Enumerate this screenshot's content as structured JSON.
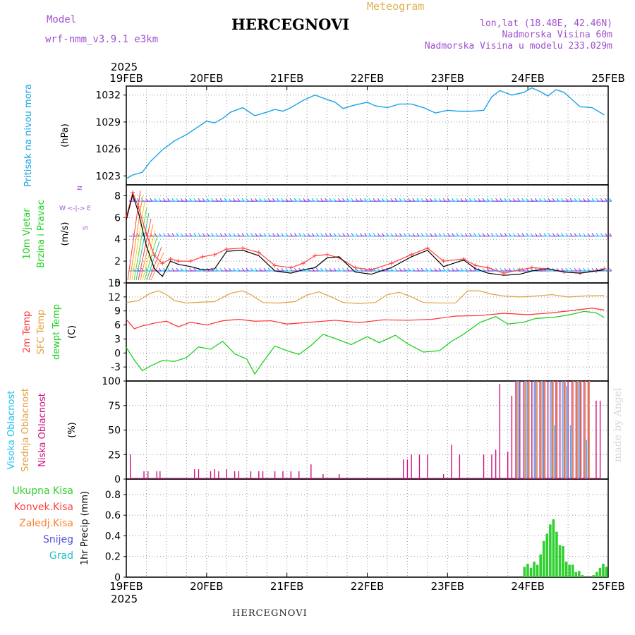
{
  "header": {
    "model_label": "Model",
    "model_value": "wrf-nmm_v3.9.1  e3km",
    "station": "HERCEGNOVI",
    "title": "Meteogram",
    "coords": "lon,lat (18.48E, 42.46N)",
    "elevation": "Nadmorska Visina 60m",
    "model_elevation": "Nadmorska Visina u modelu 233.029m"
  },
  "footer": {
    "station": "HERCEGNOVI",
    "credit": "made by Angel"
  },
  "colors": {
    "pressure": "#1aa3e8",
    "wind_speed": "#000000",
    "gust": "#ff4040",
    "temp2m": "#ff3030",
    "sfc_temp": "#e0a040",
    "dewpoint": "#20d020",
    "high_cloud": "#20c0f0",
    "mid_cloud": "#e0a040",
    "low_cloud": "#d01080",
    "precip": "#30d030"
  },
  "chart_data": [
    {
      "type": "line",
      "panel": "pressure",
      "ylabel_lines": [
        "Pritisak na nivou mora",
        "(hPa)"
      ],
      "ylim": [
        1022,
        1033
      ],
      "yticks": [
        1023,
        1026,
        1029,
        1032
      ],
      "x_days": [
        "19FEB",
        "20FEB",
        "21FEB",
        "22FEB",
        "23FEB",
        "24FEB",
        "25FEB"
      ],
      "year": "2025",
      "series": [
        {
          "name": "MSLP",
          "x": [
            0,
            0.08,
            0.2,
            0.3,
            0.45,
            0.6,
            0.75,
            0.9,
            1.0,
            1.1,
            1.2,
            1.3,
            1.45,
            1.6,
            1.75,
            1.85,
            1.95,
            2.05,
            2.2,
            2.35,
            2.5,
            2.6,
            2.7,
            2.85,
            3.0,
            3.1,
            3.25,
            3.4,
            3.55,
            3.7,
            3.85,
            4.0,
            4.15,
            4.3,
            4.45,
            4.55,
            4.65,
            4.8,
            4.95,
            5.05,
            5.15,
            5.25,
            5.35,
            5.45,
            5.55,
            5.65,
            5.8,
            5.95
          ],
          "values": [
            1022.7,
            1023.1,
            1023.4,
            1024.6,
            1025.9,
            1026.9,
            1027.6,
            1028.5,
            1029.1,
            1028.9,
            1029.4,
            1030.1,
            1030.6,
            1029.7,
            1030.1,
            1030.4,
            1030.2,
            1030.6,
            1031.4,
            1032.0,
            1031.5,
            1031.2,
            1030.5,
            1030.9,
            1031.2,
            1030.8,
            1030.6,
            1031.0,
            1031.0,
            1030.6,
            1030.0,
            1030.3,
            1030.2,
            1030.2,
            1030.3,
            1031.8,
            1032.5,
            1032.0,
            1032.3,
            1032.8,
            1032.4,
            1031.9,
            1032.6,
            1032.3,
            1031.5,
            1030.7,
            1030.6,
            1029.8
          ]
        }
      ]
    },
    {
      "type": "line",
      "panel": "wind",
      "ylabel_lines": [
        "10m Vjetar",
        "Brzina i Pravac",
        "(m/s)"
      ],
      "compass": "N / W E / S",
      "ylim": [
        0,
        9
      ],
      "yticks": [
        0,
        2,
        4,
        6,
        8
      ],
      "barb_levels": [
        7.5,
        4.3,
        1.1
      ],
      "series": [
        {
          "name": "Speed",
          "x": [
            0,
            0.08,
            0.15,
            0.25,
            0.35,
            0.45,
            0.55,
            0.65,
            0.8,
            0.95,
            1.1,
            1.25,
            1.45,
            1.65,
            1.85,
            2.05,
            2.2,
            2.35,
            2.5,
            2.65,
            2.85,
            3.05,
            3.3,
            3.55,
            3.75,
            3.95,
            4.2,
            4.35,
            4.5,
            4.7,
            4.9,
            5.05,
            5.25,
            5.45,
            5.65,
            5.85,
            5.95
          ],
          "values": [
            5.8,
            8.1,
            6.5,
            3.4,
            1.3,
            0.6,
            2.0,
            1.7,
            1.5,
            1.2,
            1.3,
            2.9,
            3.0,
            2.5,
            1.1,
            0.9,
            1.2,
            1.4,
            2.3,
            2.4,
            1.0,
            0.8,
            1.4,
            2.4,
            3.0,
            1.5,
            2.1,
            1.3,
            0.9,
            0.7,
            0.8,
            1.1,
            1.3,
            1.0,
            0.9,
            1.1,
            1.2
          ]
        },
        {
          "name": "Gust",
          "x": [
            0,
            0.08,
            0.15,
            0.25,
            0.35,
            0.45,
            0.55,
            0.65,
            0.8,
            0.95,
            1.1,
            1.25,
            1.45,
            1.65,
            1.85,
            2.05,
            2.2,
            2.35,
            2.5,
            2.65,
            2.85,
            3.05,
            3.3,
            3.55,
            3.75,
            3.95,
            4.2,
            4.35,
            4.5,
            4.7,
            4.9,
            5.05,
            5.25,
            5.45,
            5.65,
            5.85,
            5.95
          ],
          "values": [
            6.0,
            8.3,
            7.0,
            4.5,
            2.5,
            1.8,
            2.2,
            2.0,
            2.0,
            2.4,
            2.6,
            3.1,
            3.2,
            2.8,
            1.6,
            1.4,
            1.8,
            2.5,
            2.6,
            2.3,
            1.4,
            1.2,
            1.8,
            2.6,
            3.2,
            2.0,
            2.2,
            1.6,
            1.4,
            0.9,
            1.2,
            1.4,
            1.3,
            1.0,
            0.9,
            1.1,
            1.3
          ]
        }
      ]
    },
    {
      "type": "line",
      "panel": "temperature",
      "ylabel_lines": [
        "2m Temp",
        "SFC Temp",
        "dewpt Temp",
        "(C)"
      ],
      "ylim": [
        -6,
        15
      ],
      "yticks": [
        -3,
        0,
        3,
        6,
        9,
        12,
        15
      ],
      "series": [
        {
          "name": "2m Temp",
          "x": [
            0,
            0.1,
            0.2,
            0.35,
            0.5,
            0.65,
            0.8,
            1.0,
            1.2,
            1.4,
            1.6,
            1.8,
            2.0,
            2.3,
            2.6,
            2.9,
            3.2,
            3.5,
            3.8,
            4.1,
            4.4,
            4.7,
            5.0,
            5.3,
            5.6,
            5.8,
            5.95
          ],
          "values": [
            7.2,
            5.2,
            5.8,
            6.4,
            6.8,
            5.6,
            6.6,
            6.0,
            6.9,
            7.2,
            6.8,
            6.9,
            6.2,
            6.6,
            7.0,
            6.5,
            7.1,
            7.0,
            7.2,
            7.9,
            8.0,
            8.5,
            8.2,
            8.6,
            9.2,
            9.6,
            9.2
          ]
        },
        {
          "name": "SFC Temp",
          "x": [
            0,
            0.15,
            0.3,
            0.4,
            0.5,
            0.6,
            0.75,
            0.95,
            1.1,
            1.3,
            1.45,
            1.55,
            1.7,
            1.9,
            2.1,
            2.25,
            2.4,
            2.55,
            2.7,
            2.9,
            3.1,
            3.25,
            3.4,
            3.55,
            3.7,
            3.9,
            4.1,
            4.25,
            4.4,
            4.55,
            4.7,
            4.9,
            5.1,
            5.3,
            5.5,
            5.7,
            5.95
          ],
          "values": [
            10.8,
            11.2,
            12.8,
            13.3,
            12.5,
            11.2,
            10.7,
            10.9,
            11.0,
            12.8,
            13.3,
            12.5,
            10.8,
            10.7,
            11.0,
            12.4,
            13.1,
            12.0,
            10.8,
            10.6,
            10.8,
            12.5,
            13.0,
            12.0,
            10.8,
            10.7,
            10.7,
            13.3,
            13.3,
            12.6,
            12.2,
            12.0,
            12.2,
            12.5,
            12.0,
            12.2,
            12.3
          ]
        },
        {
          "name": "Dewpoint",
          "x": [
            0,
            0.1,
            0.2,
            0.3,
            0.45,
            0.6,
            0.75,
            0.9,
            1.05,
            1.2,
            1.35,
            1.5,
            1.6,
            1.7,
            1.85,
            2.0,
            2.15,
            2.3,
            2.45,
            2.6,
            2.8,
            3.0,
            3.15,
            3.35,
            3.5,
            3.7,
            3.9,
            4.05,
            4.2,
            4.4,
            4.6,
            4.75,
            4.95,
            5.1,
            5.3,
            5.5,
            5.7,
            5.85,
            5.95
          ],
          "values": [
            1.2,
            -1.5,
            -3.8,
            -2.8,
            -1.6,
            -1.8,
            -1.0,
            1.3,
            0.8,
            2.5,
            -0.2,
            -1.3,
            -4.5,
            -2.0,
            1.5,
            0.5,
            -0.3,
            1.6,
            4.0,
            3.1,
            1.8,
            3.5,
            2.2,
            3.8,
            2.0,
            0.2,
            0.5,
            2.5,
            4.0,
            6.5,
            7.8,
            6.2,
            6.6,
            7.4,
            7.6,
            8.1,
            8.9,
            8.6,
            7.6
          ]
        }
      ]
    },
    {
      "type": "bar",
      "panel": "cloud",
      "ylabel_lines": [
        "Visoka Oblacnost",
        "Srednja Oblacnost",
        "Niska Oblacnost",
        "(%)"
      ],
      "ylim": [
        0,
        100
      ],
      "yticks": [
        0,
        25,
        50,
        75,
        100
      ],
      "series": [
        {
          "name": "Niska",
          "x": [
            0.05,
            0.22,
            0.27,
            0.38,
            0.42,
            0.85,
            0.9,
            1.05,
            1.1,
            1.15,
            1.25,
            1.35,
            1.4,
            1.55,
            1.65,
            1.7,
            1.85,
            1.95,
            2.05,
            2.15,
            2.3,
            2.45,
            2.65,
            3.45,
            3.5,
            3.55,
            3.65,
            3.75,
            3.95,
            4.05,
            4.15,
            4.45,
            4.55,
            4.6,
            4.65,
            4.75,
            4.8,
            4.85,
            4.9,
            4.95,
            5.0,
            5.05,
            5.1,
            5.15,
            5.2,
            5.25,
            5.3,
            5.35,
            5.4,
            5.45,
            5.5,
            5.55,
            5.6,
            5.65,
            5.7,
            5.75,
            5.85,
            5.9
          ],
          "values": [
            25,
            8,
            8,
            8,
            8,
            10,
            10,
            8,
            10,
            8,
            10,
            8,
            8,
            8,
            8,
            8,
            8,
            8,
            8,
            8,
            15,
            5,
            5,
            20,
            20,
            25,
            25,
            25,
            5,
            35,
            25,
            25,
            25,
            30,
            97,
            28,
            85,
            100,
            100,
            100,
            100,
            100,
            100,
            100,
            100,
            100,
            100,
            100,
            100,
            100,
            100,
            100,
            100,
            100,
            100,
            100,
            80,
            80
          ]
        },
        {
          "name": "Srednja",
          "x": [
            4.85,
            4.95,
            5.0,
            5.1,
            5.15,
            5.2,
            5.3,
            5.35,
            5.45,
            5.55,
            5.6,
            5.65,
            5.7,
            5.75
          ],
          "values": [
            100,
            100,
            100,
            100,
            100,
            100,
            100,
            100,
            100,
            100,
            100,
            100,
            100,
            100
          ]
        },
        {
          "name": "Visoka",
          "x": [
            4.85,
            4.95,
            5.05,
            5.15,
            5.25,
            5.3,
            5.4,
            5.45,
            5.5,
            5.6,
            5.7
          ],
          "values": [
            100,
            100,
            100,
            100,
            100,
            55,
            100,
            95,
            55,
            100,
            40
          ]
        }
      ]
    },
    {
      "type": "bar",
      "panel": "precip",
      "ylabel_lines": [
        "1hr Precip (mm)"
      ],
      "legend": [
        "Ukupna Kisa",
        "Konvek.Kisa",
        "Zaledj.Kisa",
        "Snijeg",
        "Grad"
      ],
      "ylim": [
        0,
        0.95
      ],
      "yticks": [
        0,
        0.2,
        0.4,
        0.6,
        0.8
      ],
      "series": [
        {
          "name": "Ukupna Kisa",
          "x": [
            4.96,
            5.0,
            5.04,
            5.08,
            5.12,
            5.16,
            5.2,
            5.24,
            5.28,
            5.32,
            5.36,
            5.4,
            5.44,
            5.48,
            5.52,
            5.56,
            5.6,
            5.64,
            5.68,
            5.82,
            5.86,
            5.9,
            5.94,
            5.98
          ],
          "values": [
            0.1,
            0.13,
            0.09,
            0.15,
            0.12,
            0.22,
            0.35,
            0.42,
            0.51,
            0.56,
            0.44,
            0.31,
            0.3,
            0.15,
            0.12,
            0.12,
            0.05,
            0.06,
            0.02,
            0.02,
            0.05,
            0.09,
            0.13,
            0.1
          ]
        }
      ]
    }
  ]
}
